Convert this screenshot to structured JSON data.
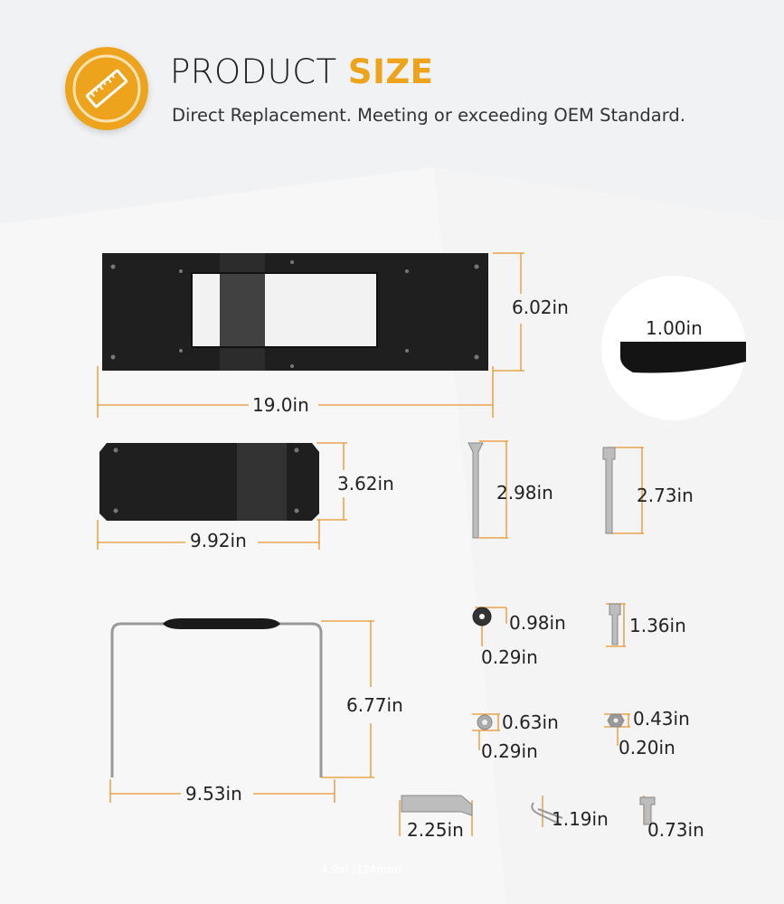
{
  "header": {
    "icon": "ruler-icon",
    "title_plain": "PRODUCT",
    "title_accent": "SIZE",
    "subtitle": "Direct Replacement. Meeting or exceeding OEM Standard."
  },
  "colors": {
    "accent": "#eda31c",
    "dimension_line": "#e8952a",
    "part": "#1e1e1e",
    "text": "#222222"
  },
  "dimensions": {
    "main_plate_height": "6.02in",
    "main_plate_width": "19.0in",
    "plate_thickness": "1.00in",
    "small_plate_height": "3.62in",
    "small_plate_width": "9.92in",
    "long_screw": "2.98in",
    "bolt": "2.73in",
    "large_washer_outer": "0.98in",
    "large_washer_inner": "0.29in",
    "short_screw": "1.36in",
    "handle_height": "6.77in",
    "handle_width": "9.53in",
    "small_washer_outer": "0.63in",
    "small_washer_inner": "0.29in",
    "nut_outer": "0.43in",
    "nut_inner": "0.20in",
    "pin": "2.25in",
    "clip": "1.19in",
    "barrel_nut": "0.73in"
  },
  "footer_note": "4.9in (124mm)"
}
